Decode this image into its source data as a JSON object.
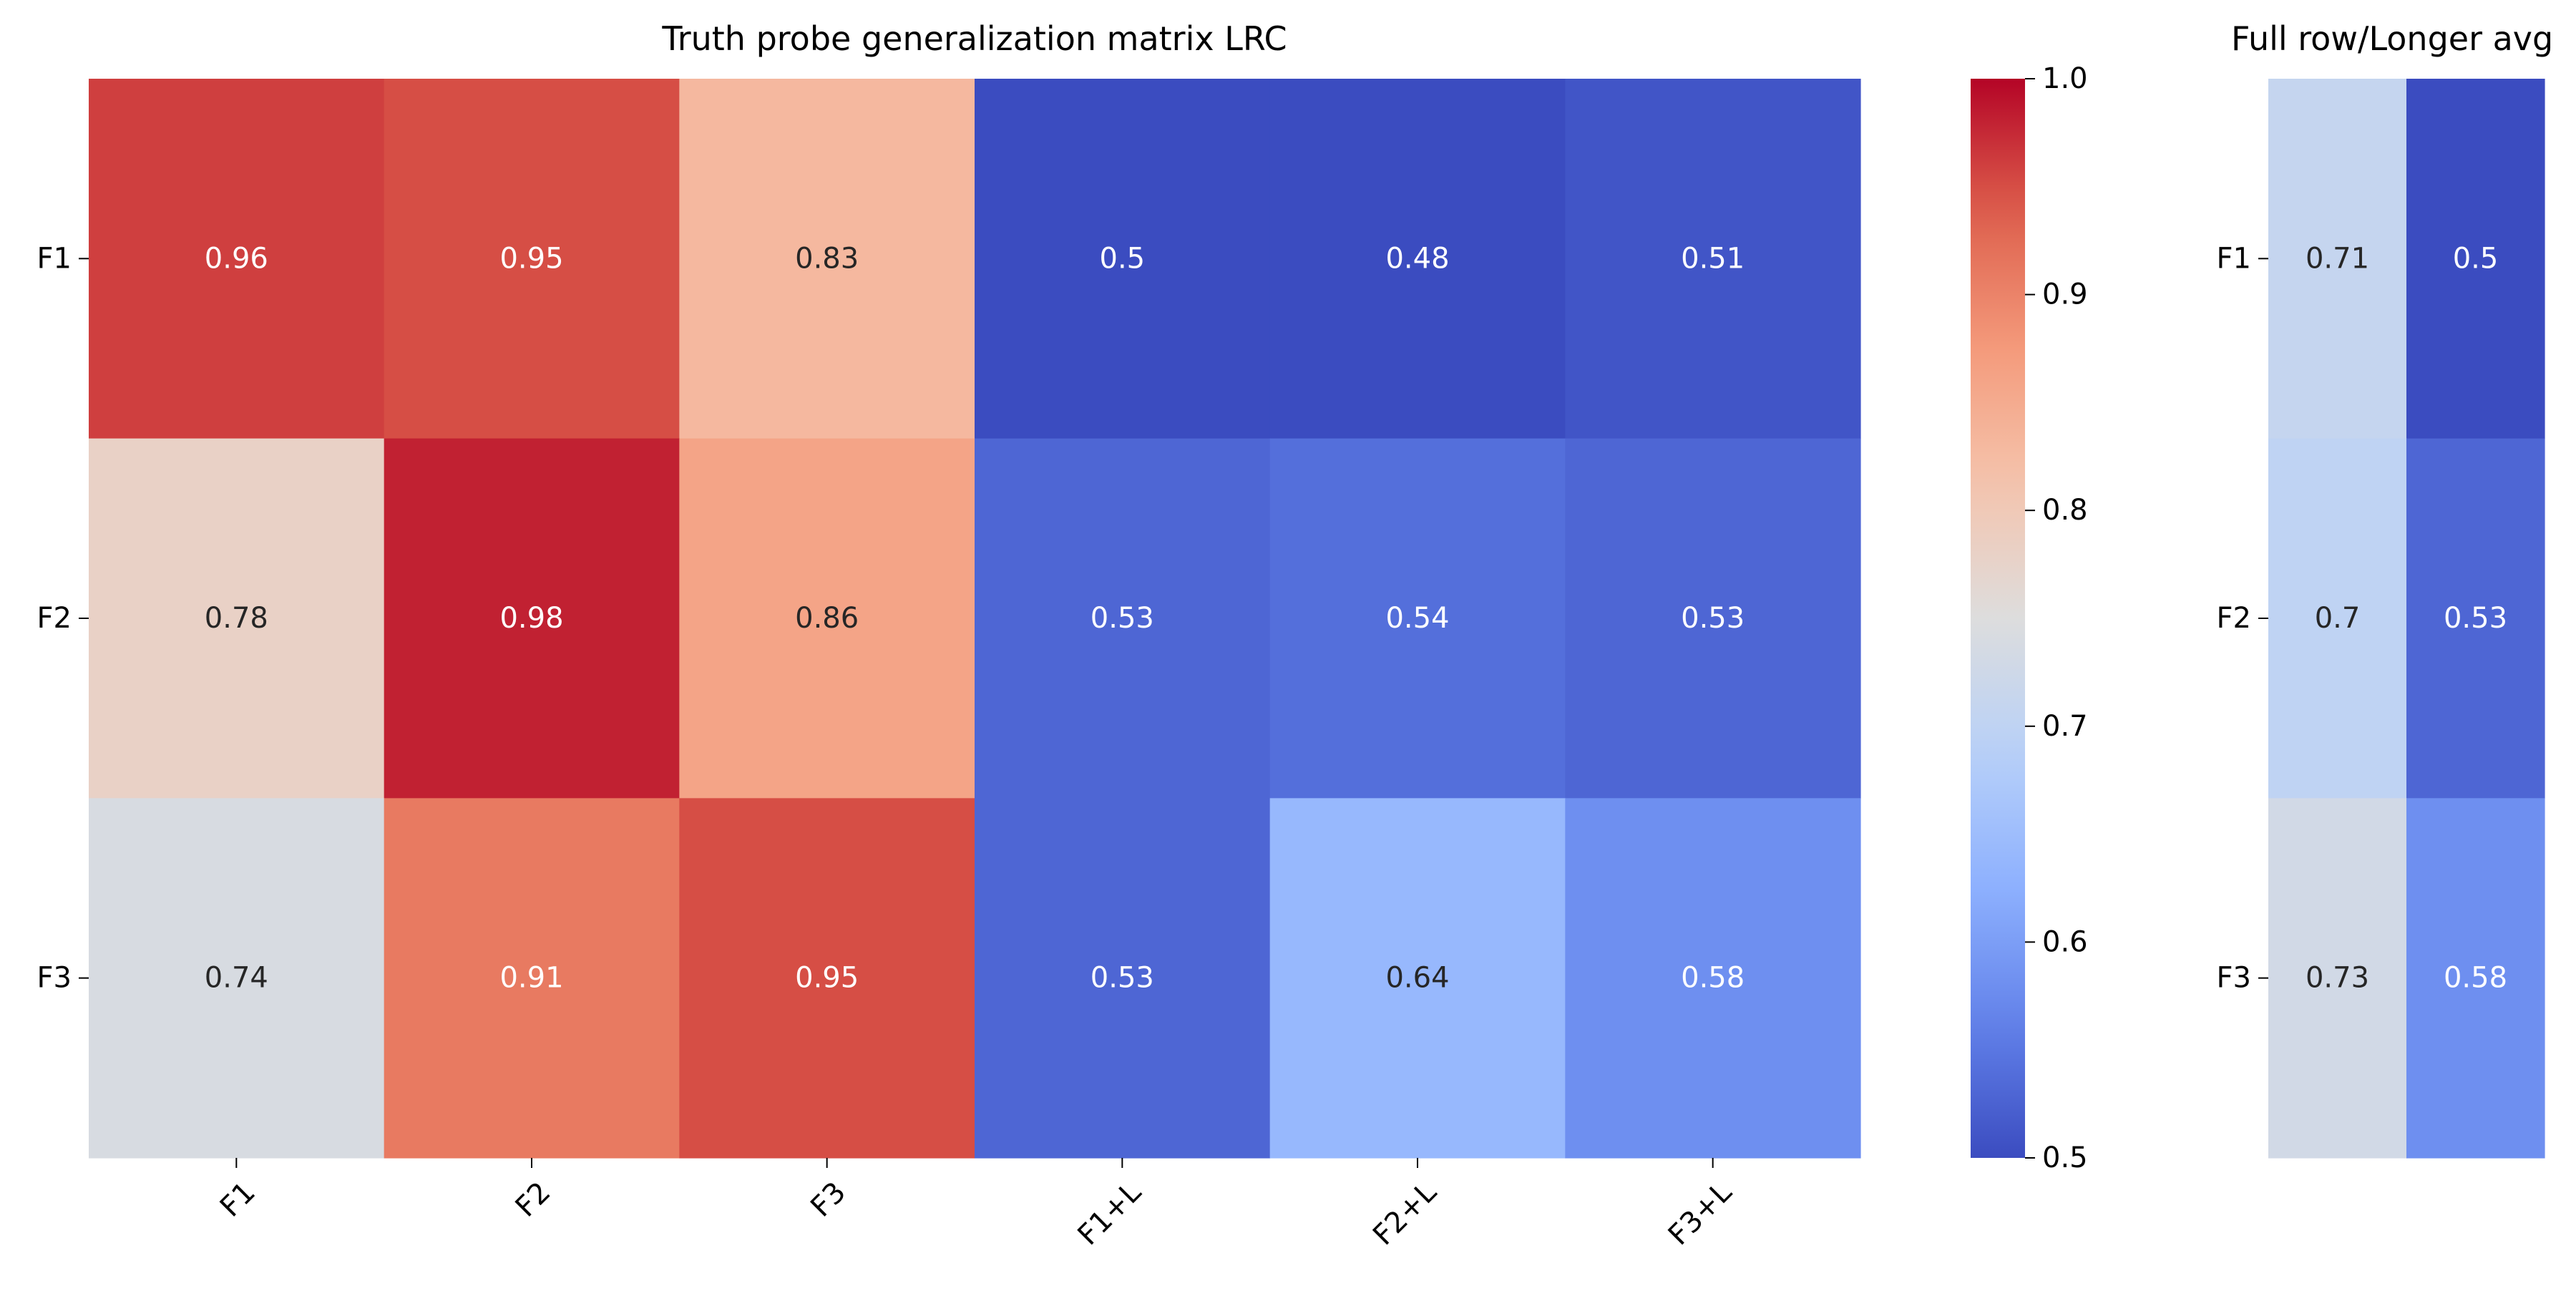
{
  "chart_data": [
    {
      "type": "heatmap",
      "title": "Truth probe generalization matrix LRC",
      "rows": [
        "F1",
        "F2",
        "F3"
      ],
      "columns": [
        "F1",
        "F2",
        "F3",
        "F1+L",
        "F2+L",
        "F3+L"
      ],
      "values": [
        [
          0.96,
          0.95,
          0.83,
          0.5,
          0.48,
          0.51
        ],
        [
          0.78,
          0.98,
          0.86,
          0.53,
          0.54,
          0.53
        ],
        [
          0.74,
          0.91,
          0.95,
          0.53,
          0.64,
          0.58
        ]
      ],
      "colormap": "coolwarm",
      "vmin": 0.5,
      "vmax": 1.0,
      "colorbar": {
        "ticks": [
          "0.5",
          "0.6",
          "0.7",
          "0.8",
          "0.9",
          "1.0"
        ],
        "tick_values": [
          0.5,
          0.6,
          0.7,
          0.8,
          0.9,
          1.0
        ]
      }
    },
    {
      "type": "heatmap",
      "title": "Full row/Longer avg",
      "rows": [
        "F1",
        "F2",
        "F3"
      ],
      "columns": [
        "",
        ""
      ],
      "values": [
        [
          0.71,
          0.5
        ],
        [
          0.7,
          0.53
        ],
        [
          0.73,
          0.58
        ]
      ],
      "colormap": "coolwarm",
      "vmin": 0.5,
      "vmax": 1.0
    }
  ]
}
